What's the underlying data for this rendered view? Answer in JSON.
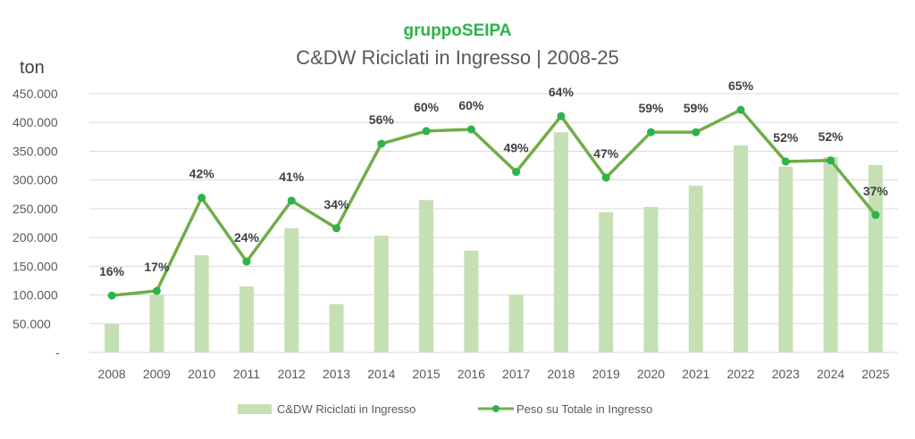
{
  "logo": "gruppoSEIPA",
  "chart_data": {
    "type": "bar+line",
    "title": "C&DW Riciclati in Ingresso | 2008-25",
    "ylabel": "ton",
    "ylim": [
      0,
      450000
    ],
    "yticks": [
      0,
      50000,
      100000,
      150000,
      200000,
      250000,
      300000,
      350000,
      400000,
      450000
    ],
    "ytick_labels": [
      "-",
      "50.000",
      "100.000",
      "150.000",
      "200.000",
      "250.000",
      "300.000",
      "350.000",
      "400.000",
      "450.000"
    ],
    "grid": true,
    "legend_position": "bottom",
    "categories": [
      "2008",
      "2009",
      "2010",
      "2011",
      "2012",
      "2013",
      "2014",
      "2015",
      "2016",
      "2017",
      "2018",
      "2019",
      "2020",
      "2021",
      "2022",
      "2023",
      "2024",
      "2025"
    ],
    "series": [
      {
        "name": "C&DW Riciclati in Ingresso",
        "type": "bar",
        "color": "#c5e0b4",
        "values": [
          50000,
          100000,
          169000,
          115000,
          216000,
          84000,
          203000,
          265000,
          177000,
          101000,
          383000,
          244000,
          253000,
          290000,
          360000,
          323000,
          340000,
          326000
        ]
      },
      {
        "name": "Peso su Totale in Ingresso",
        "type": "line",
        "color": "#70ad47",
        "marker_color": "#2db34a",
        "values": [
          99000,
          107000,
          269000,
          158000,
          264000,
          216000,
          363000,
          385000,
          388000,
          314000,
          411000,
          304000,
          383000,
          383000,
          422000,
          332000,
          334000,
          239000
        ],
        "labels": [
          "16%",
          "17%",
          "42%",
          "24%",
          "41%",
          "34%",
          "56%",
          "60%",
          "60%",
          "49%",
          "64%",
          "47%",
          "59%",
          "59%",
          "65%",
          "52%",
          "52%",
          "37%"
        ]
      }
    ]
  }
}
